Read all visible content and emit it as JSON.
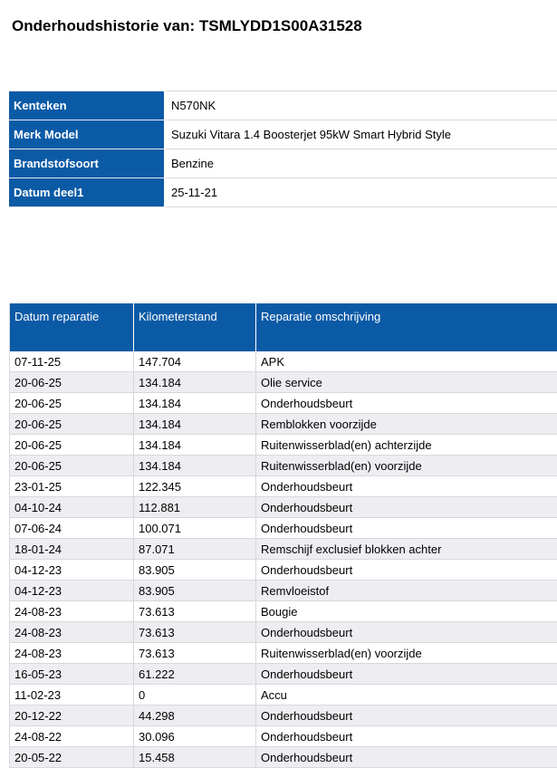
{
  "page": {
    "title": "Onderhoudshistorie van: TSMLYDD1S00A31528"
  },
  "colors": {
    "accent_blue": "#0b5aa6",
    "row_stripe": "#eeeef2",
    "border_gray": "#d8d8dc",
    "header_text": "#ffffff",
    "body_text": "#000000"
  },
  "vehicle_info": {
    "rows": [
      {
        "label": "Kenteken",
        "value": "N570NK"
      },
      {
        "label": "Merk Model",
        "value": "Suzuki Vitara 1.4 Boosterjet 95kW Smart Hybrid Style"
      },
      {
        "label": "Brandstofsoort",
        "value": "Benzine"
      },
      {
        "label": "Datum deel1",
        "value": "25-11-21"
      }
    ]
  },
  "history": {
    "columns": [
      "Datum reparatie",
      "Kilometerstand",
      "Reparatie omschrijving"
    ],
    "rows": [
      {
        "date": "07-11-25",
        "km": "147.704",
        "desc": "APK"
      },
      {
        "date": "20-06-25",
        "km": "134.184",
        "desc": "Olie service"
      },
      {
        "date": "20-06-25",
        "km": "134.184",
        "desc": "Onderhoudsbeurt"
      },
      {
        "date": "20-06-25",
        "km": "134.184",
        "desc": "Remblokken voorzijde"
      },
      {
        "date": "20-06-25",
        "km": "134.184",
        "desc": "Ruitenwisserblad(en) achterzijde"
      },
      {
        "date": "20-06-25",
        "km": "134.184",
        "desc": "Ruitenwisserblad(en) voorzijde"
      },
      {
        "date": "23-01-25",
        "km": "122.345",
        "desc": "Onderhoudsbeurt"
      },
      {
        "date": "04-10-24",
        "km": "112.881",
        "desc": "Onderhoudsbeurt"
      },
      {
        "date": "07-06-24",
        "km": "100.071",
        "desc": "Onderhoudsbeurt"
      },
      {
        "date": "18-01-24",
        "km": "87.071",
        "desc": "Remschijf exclusief blokken achter"
      },
      {
        "date": "04-12-23",
        "km": "83.905",
        "desc": "Onderhoudsbeurt"
      },
      {
        "date": "04-12-23",
        "km": "83.905",
        "desc": "Remvloeistof"
      },
      {
        "date": "24-08-23",
        "km": "73.613",
        "desc": "Bougie"
      },
      {
        "date": "24-08-23",
        "km": "73.613",
        "desc": "Onderhoudsbeurt"
      },
      {
        "date": "24-08-23",
        "km": "73.613",
        "desc": "Ruitenwisserblad(en) voorzijde"
      },
      {
        "date": "16-05-23",
        "km": "61.222",
        "desc": "Onderhoudsbeurt"
      },
      {
        "date": "11-02-23",
        "km": "0",
        "desc": "Accu"
      },
      {
        "date": "20-12-22",
        "km": "44.298",
        "desc": "Onderhoudsbeurt"
      },
      {
        "date": "24-08-22",
        "km": "30.096",
        "desc": "Onderhoudsbeurt"
      },
      {
        "date": "20-05-22",
        "km": "15.458",
        "desc": "Onderhoudsbeurt"
      }
    ]
  }
}
